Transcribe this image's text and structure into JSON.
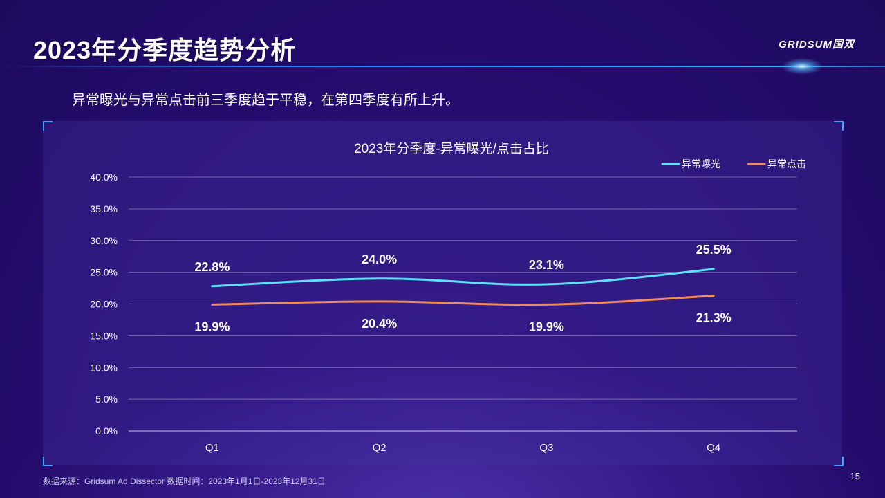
{
  "slide": {
    "title": "2023年分季度趋势分析",
    "logo": "GRIDSUM国双",
    "subtitle": "异常曝光与异常点击前三季度趋于平稳，在第四季度有所上升。",
    "footer": "数据来源：Gridsum Ad Dissector 数据时间：2023年1月1日-2023年12月31日",
    "page_number": "15"
  },
  "chart_data": {
    "type": "line",
    "title": "2023年分季度-异常曝光/点击占比",
    "categories": [
      "Q1",
      "Q2",
      "Q3",
      "Q4"
    ],
    "series": [
      {
        "name": "异常曝光",
        "values": [
          22.8,
          24.0,
          23.1,
          25.5
        ],
        "labels": [
          "22.8%",
          "24.0%",
          "23.1%",
          "25.5%"
        ],
        "color": "#5fe0ff",
        "label_position": "above"
      },
      {
        "name": "异常点击",
        "values": [
          19.9,
          20.4,
          19.9,
          21.3
        ],
        "labels": [
          "19.9%",
          "20.4%",
          "19.9%",
          "21.3%"
        ],
        "color": "#f08a5d",
        "label_position": "below"
      }
    ],
    "ylim": [
      0,
      40
    ],
    "yticks": [
      0,
      5,
      10,
      15,
      20,
      25,
      30,
      35,
      40
    ],
    "ytick_labels": [
      "0.0%",
      "5.0%",
      "10.0%",
      "15.0%",
      "20.0%",
      "25.0%",
      "30.0%",
      "35.0%",
      "40.0%"
    ],
    "grid": true,
    "legend_position": "top-right",
    "smooth": true
  }
}
